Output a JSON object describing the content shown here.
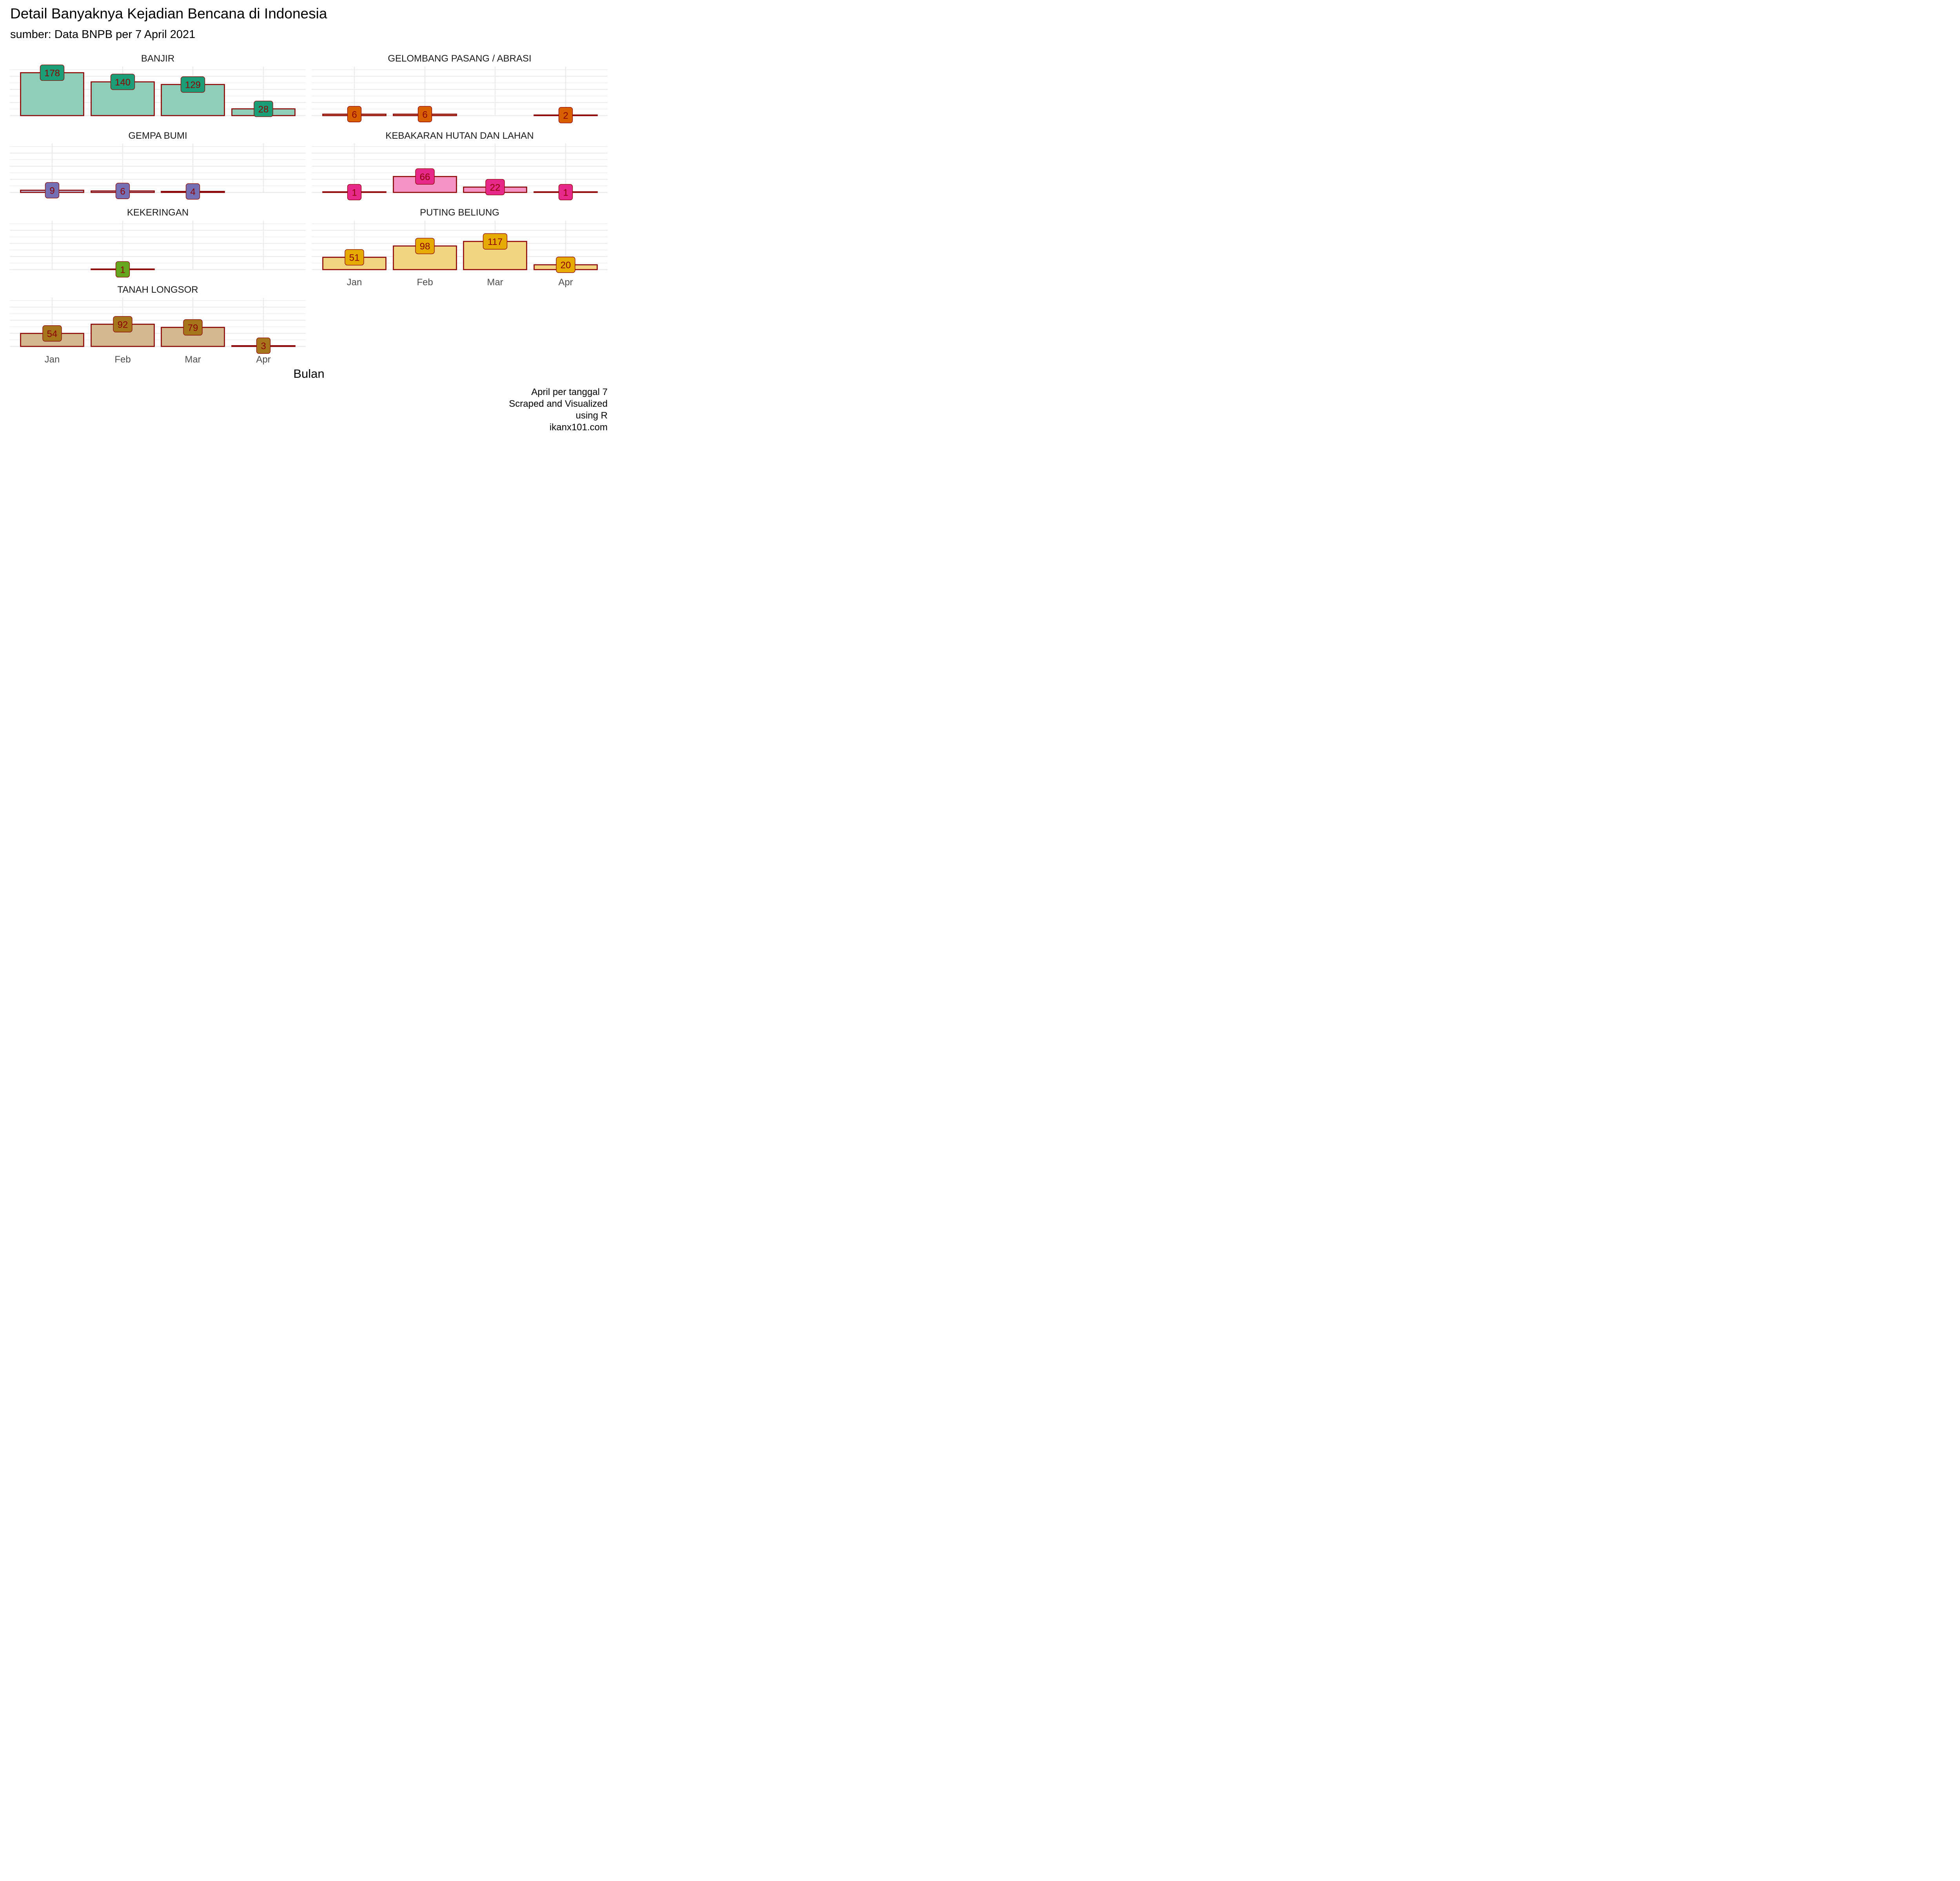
{
  "chart_data": {
    "type": "bar",
    "title": "Detail Banyaknya Kejadian Bencana di Indonesia",
    "subtitle": "sumber: Data BNPB per 7 April 2021",
    "xlabel": "Bulan",
    "ylabel": "",
    "categories": [
      "Jan",
      "Feb",
      "Mar",
      "Apr"
    ],
    "ylim": [
      0,
      187
    ],
    "grid": true,
    "legend": "none",
    "caption": [
      "April per tanggal 7",
      "Scraped and Visualized",
      "using R",
      "ikanx101.com"
    ],
    "facets": [
      {
        "name": "BANJIR",
        "color": "#1b9e77",
        "fill": "#8fcfba",
        "values": [
          178,
          140,
          129,
          28
        ]
      },
      {
        "name": "GELOMBANG PASANG / ABRASI",
        "color": "#d95f02",
        "fill": "#ecaf80",
        "values": [
          6,
          6,
          null,
          2
        ]
      },
      {
        "name": "GEMPA BUMI",
        "color": "#7570b3",
        "fill": "#bab7d9",
        "values": [
          9,
          6,
          4,
          null
        ]
      },
      {
        "name": "KEBAKARAN HUTAN DAN LAHAN",
        "color": "#e7298a",
        "fill": "#f394c4",
        "values": [
          1,
          66,
          22,
          1
        ]
      },
      {
        "name": "KEKERINGAN",
        "color": "#66a61e",
        "fill": "#b2d28e",
        "values": [
          null,
          1,
          null,
          null
        ]
      },
      {
        "name": "PUTING BELIUNG",
        "color": "#e6ab02",
        "fill": "#f2d580",
        "values": [
          51,
          98,
          117,
          20
        ]
      },
      {
        "name": "TANAH LONGSOR",
        "color": "#a6761d",
        "fill": "#d2ba8e",
        "values": [
          54,
          92,
          79,
          3
        ]
      }
    ],
    "outline_color": "#8b0000",
    "label_text_color": "#8b0000"
  }
}
